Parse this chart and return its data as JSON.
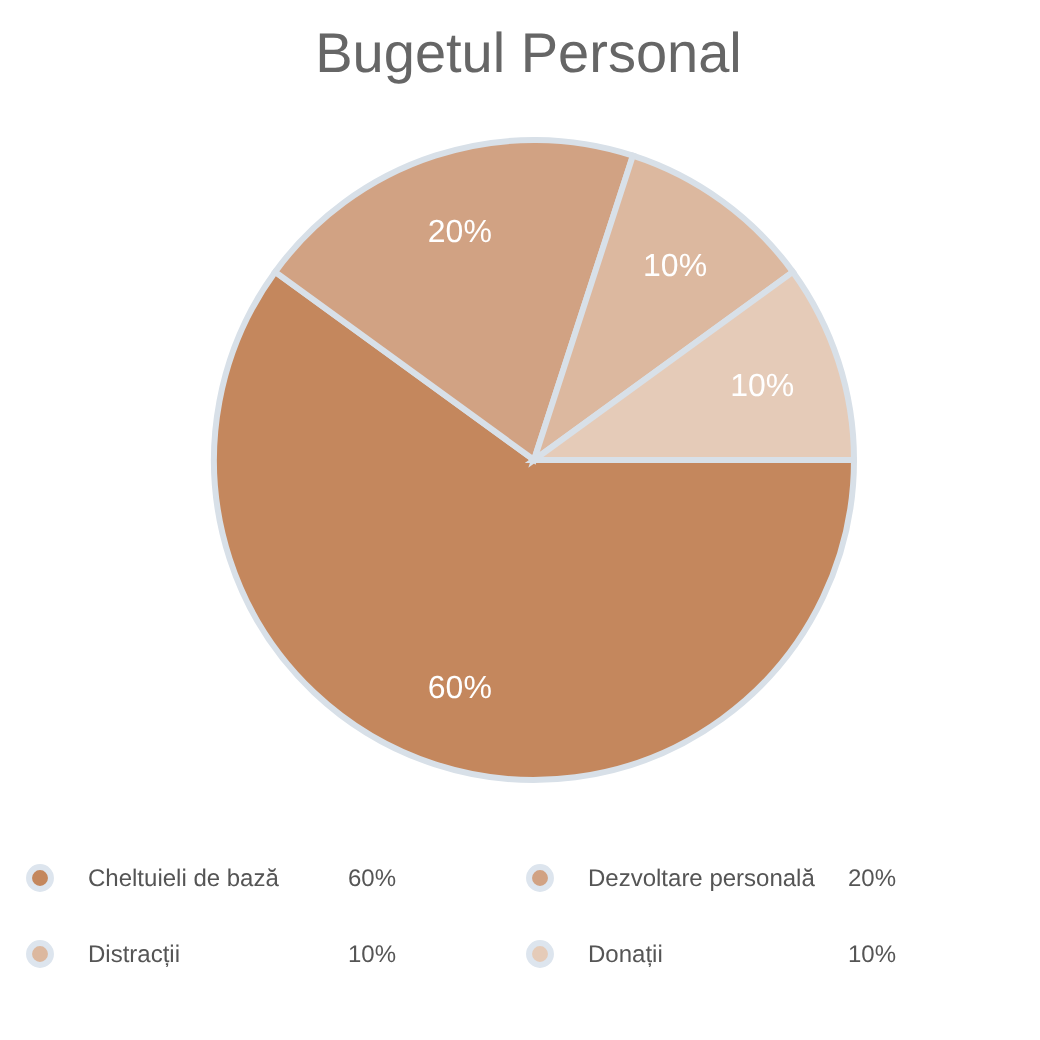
{
  "chart_data": {
    "type": "pie",
    "title": "Bugetul Personal",
    "categories": [
      "Cheltuieli de bază",
      "Dezvoltare personală",
      "Distracții",
      "Donații"
    ],
    "values": [
      60,
      20,
      10,
      10
    ],
    "colors": [
      "#c4875d",
      "#d1a283",
      "#dcb89f",
      "#e5cbb8"
    ],
    "value_labels": [
      "60%",
      "20%",
      "10%",
      "10%"
    ],
    "legend": "bottom"
  }
}
